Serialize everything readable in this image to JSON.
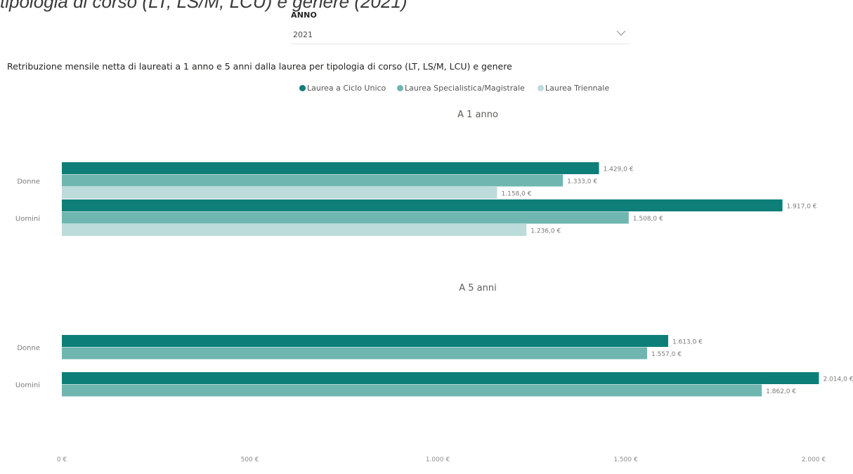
{
  "header": {
    "caption": "tipologia di corso (LT, LS/M, LCU) e genere (2021)"
  },
  "slicer": {
    "label": "ANNO",
    "value": "2021",
    "icon": "chevron-down-icon"
  },
  "colors": {
    "Laurea a Ciclo Unico": "#0d7e78",
    "Laurea Specialistica/Magistrale": "#6fb5b0",
    "Laurea Triennale": "#bcdbdb"
  },
  "chart_data": {
    "type": "bar",
    "orientation": "horizontal",
    "title": "Retribuzione mensile netta di laureati a 1 anno e 5 anni dalla laurea per tipologia di corso (LT, LS/M, LCU) e genere",
    "legend": [
      "Laurea a Ciclo Unico",
      "Laurea Specialistica/Magistrale",
      "Laurea Triennale"
    ],
    "legend_position": "top-center",
    "xlim": [
      0,
      2000
    ],
    "xticks": [
      0,
      500,
      1000,
      1500,
      2000
    ],
    "xtick_labels": [
      "0 €",
      "500 €",
      "1.000 €",
      "1.500 €",
      "2.000 €"
    ],
    "panels": [
      {
        "title": "A 1 anno",
        "categories": [
          "Donne",
          "Uomini"
        ],
        "series": [
          {
            "name": "Laurea a Ciclo Unico",
            "values": [
              1429.0,
              1917.0
            ],
            "labels": [
              "1.429,0 €",
              "1.917,0 €"
            ]
          },
          {
            "name": "Laurea Specialistica/Magistrale",
            "values": [
              1333.0,
              1508.0
            ],
            "labels": [
              "1.333,0 €",
              "1.508,0 €"
            ]
          },
          {
            "name": "Laurea Triennale",
            "values": [
              1158.0,
              1236.0
            ],
            "labels": [
              "1.158,0 €",
              "1.236,0 €"
            ]
          }
        ]
      },
      {
        "title": "A 5 anni",
        "categories": [
          "Donne",
          "Uomini"
        ],
        "series": [
          {
            "name": "Laurea a Ciclo Unico",
            "values": [
              1613.0,
              2014.0
            ],
            "labels": [
              "1.613,0 €",
              "2.014,0 €"
            ]
          },
          {
            "name": "Laurea Specialistica/Magistrale",
            "values": [
              1557.0,
              1862.0
            ],
            "labels": [
              "1.557,0 €",
              "1.862,0 €"
            ]
          }
        ]
      }
    ]
  }
}
